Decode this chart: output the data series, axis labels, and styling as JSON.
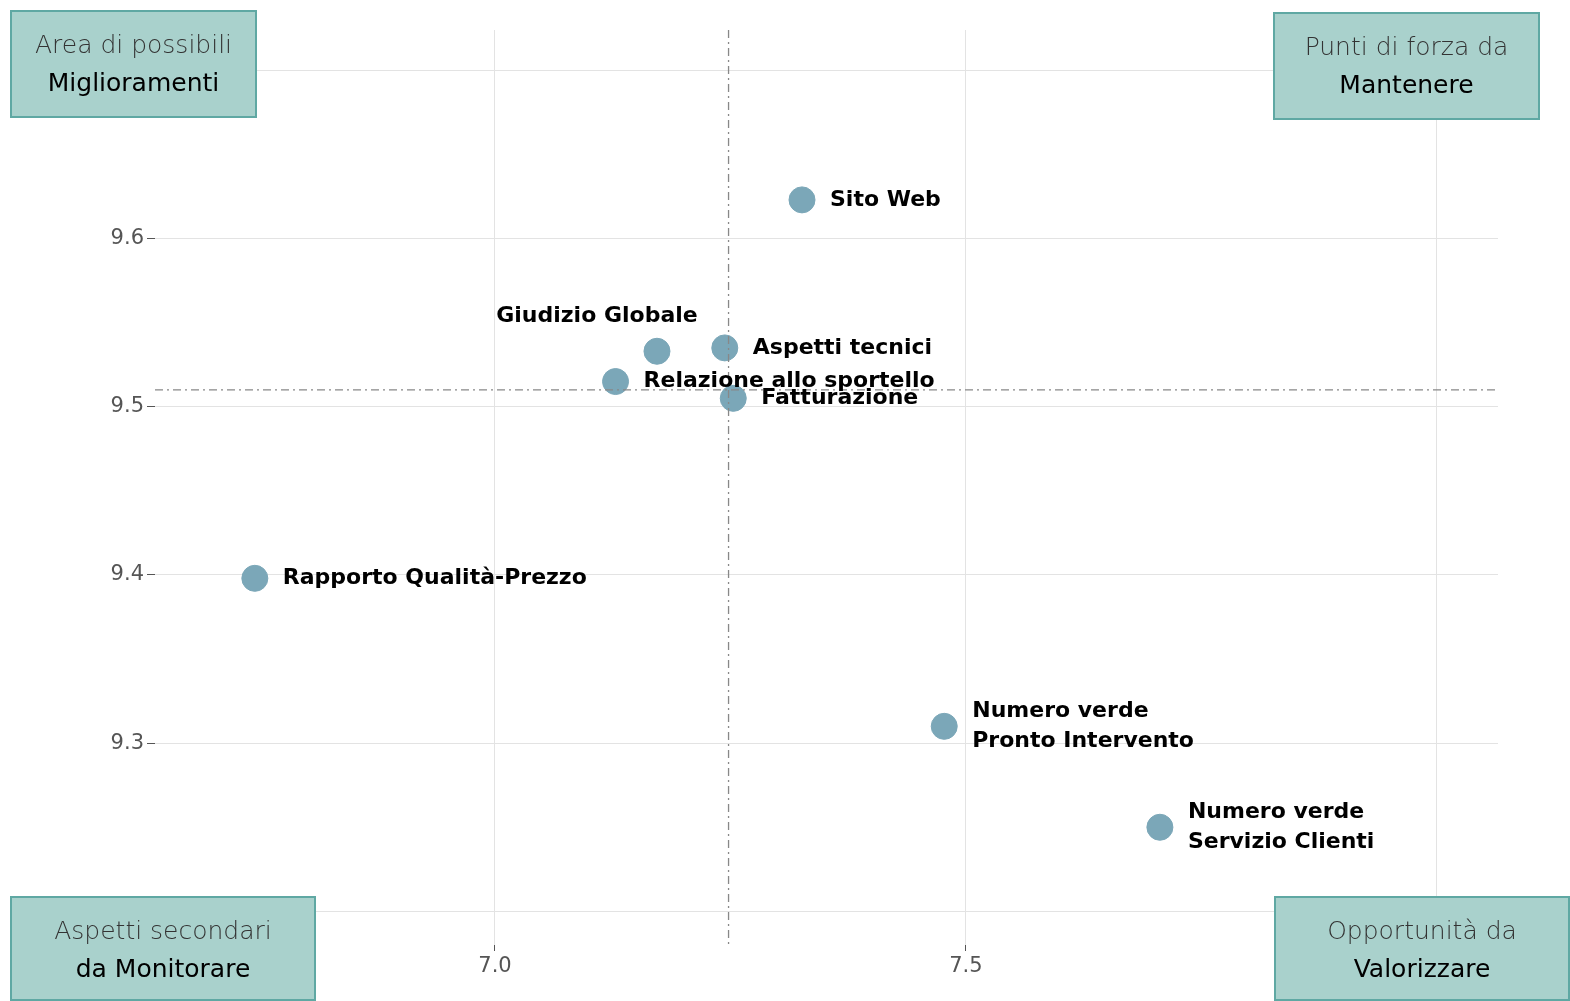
{
  "chart_data": {
    "type": "scatter",
    "series": [
      {
        "color": "#7ba7b8",
        "x": [
          7.326,
          7.172,
          7.244,
          7.128,
          7.253,
          6.745,
          7.477,
          7.706
        ],
        "values": [
          9.623,
          9.533,
          9.535,
          9.515,
          9.505,
          9.398,
          9.31,
          9.25
        ]
      }
    ],
    "xlim": [
      6.639,
      8.065
    ],
    "xticks": [
      {
        "value": 7.0,
        "label": "7.0"
      },
      7.5,
      {
        "value": 8.0,
        "label": null
      }
    ],
    "ylim": [
      9.18,
      9.724
    ],
    "yticks": [
      {
        "value": 9.2,
        "label": null
      },
      9.3,
      9.4,
      9.5,
      9.6,
      {
        "value": 9.7,
        "label": null
      }
    ],
    "grid": true,
    "legend": false,
    "marker": "circle",
    "ref_lines": [
      {
        "axis": "x",
        "value": 7.248,
        "color": "#888888",
        "line_style": "dashdot"
      },
      {
        "axis": "y",
        "value": 9.51,
        "color": "#888888",
        "line_style": "dashdot"
      }
    ],
    "annotations": [
      {
        "text": "Sito Web",
        "x": 7.326,
        "y": 9.623
      },
      {
        "text": "Giudizio Globale",
        "x": 7.172,
        "y": 9.533
      },
      {
        "text": "Aspetti tecnici",
        "x": 7.244,
        "y": 9.535
      },
      {
        "text": "Relazione allo sportello",
        "x": 7.128,
        "y": 9.515
      },
      {
        "text": "Fatturazione",
        "x": 7.253,
        "y": 9.505
      },
      {
        "text": "Rapporto Qualità-Prezzo",
        "x": 6.745,
        "y": 9.398
      },
      {
        "text": "Numero verde\nPronto Intervento",
        "x": 7.477,
        "y": 9.31
      },
      {
        "text": "Numero verde\nServizio Clienti",
        "x": 7.706,
        "y": 9.25
      },
      "Area di possibili\nMiglioramenti",
      "Punti di forza da\nMantenere",
      "Aspetti secondari\nda Monitorare",
      "Opportunità da\nValorizzare"
    ]
  }
}
